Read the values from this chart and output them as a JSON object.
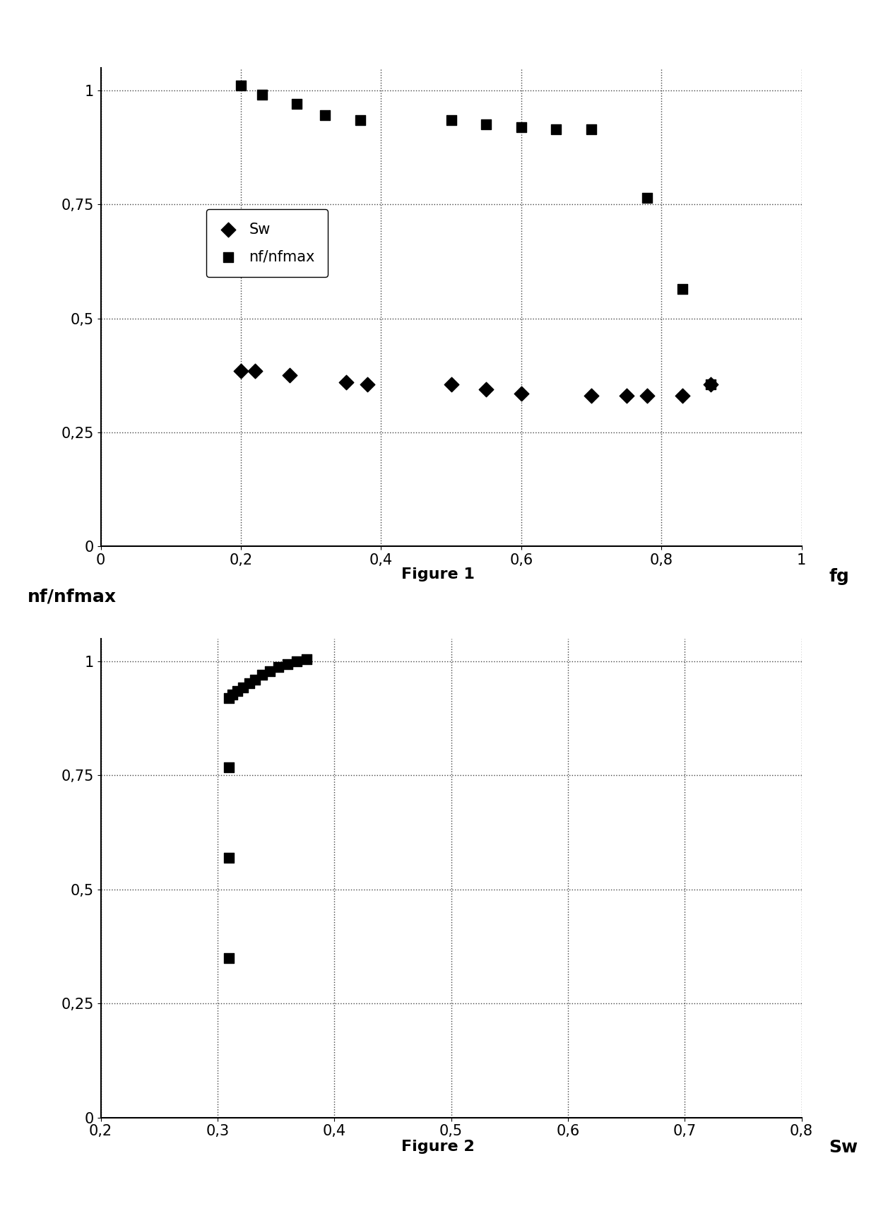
{
  "fig1": {
    "sw_x": [
      0.2,
      0.22,
      0.27,
      0.35,
      0.38,
      0.5,
      0.55,
      0.6,
      0.7,
      0.75,
      0.78,
      0.83,
      0.87
    ],
    "sw_y": [
      0.385,
      0.385,
      0.375,
      0.36,
      0.355,
      0.355,
      0.345,
      0.335,
      0.33,
      0.33,
      0.33,
      0.33,
      0.355
    ],
    "nf_x": [
      0.2,
      0.23,
      0.28,
      0.32,
      0.37,
      0.5,
      0.55,
      0.6,
      0.65,
      0.7,
      0.78,
      0.83,
      0.87
    ],
    "nf_y": [
      1.01,
      0.99,
      0.97,
      0.945,
      0.935,
      0.935,
      0.925,
      0.92,
      0.915,
      0.915,
      0.765,
      0.565,
      0.355
    ],
    "xlabel": "fg",
    "xlim": [
      0,
      1
    ],
    "ylim": [
      0,
      1.05
    ],
    "xticks": [
      0,
      0.2,
      0.4,
      0.6,
      0.8,
      1
    ],
    "yticks": [
      0,
      0.25,
      0.5,
      0.75,
      1
    ],
    "ytick_labels": [
      "0",
      "0,25",
      "0,5",
      "0,75",
      "1"
    ],
    "xtick_labels": [
      "0",
      "0,2",
      "0,4",
      "0,6",
      "0,8",
      "1"
    ],
    "caption": "Figure 1",
    "legend_sw": "Sw",
    "legend_nf": "nf/nfmax"
  },
  "fig2": {
    "sq_x": [
      0.31,
      0.313,
      0.317,
      0.322,
      0.327,
      0.332,
      0.338,
      0.345,
      0.352,
      0.36,
      0.368,
      0.376,
      0.31,
      0.31,
      0.31
    ],
    "sq_y": [
      0.92,
      0.928,
      0.935,
      0.943,
      0.952,
      0.96,
      0.97,
      0.978,
      0.987,
      0.994,
      1.0,
      1.005,
      0.768,
      0.57,
      0.35
    ],
    "xlabel": "Sw",
    "ylabel": "nf/nfmax",
    "xlim": [
      0.2,
      0.8
    ],
    "ylim": [
      0,
      1.05
    ],
    "xticks": [
      0.2,
      0.3,
      0.4,
      0.5,
      0.6,
      0.7,
      0.8
    ],
    "yticks": [
      0,
      0.25,
      0.5,
      0.75,
      1
    ],
    "ytick_labels": [
      "0",
      "0,25",
      "0,5",
      "0,75",
      "1"
    ],
    "xtick_labels": [
      "0,2",
      "0,3",
      "0,4",
      "0,5",
      "0,6",
      "0,7",
      "0,8"
    ],
    "caption": "Figure 2"
  },
  "marker_color": "#000000",
  "background_color": "#ffffff",
  "grid_color": "#444444",
  "tick_fontsize": 15,
  "caption_fontsize": 16,
  "axis_label_fontsize": 18
}
